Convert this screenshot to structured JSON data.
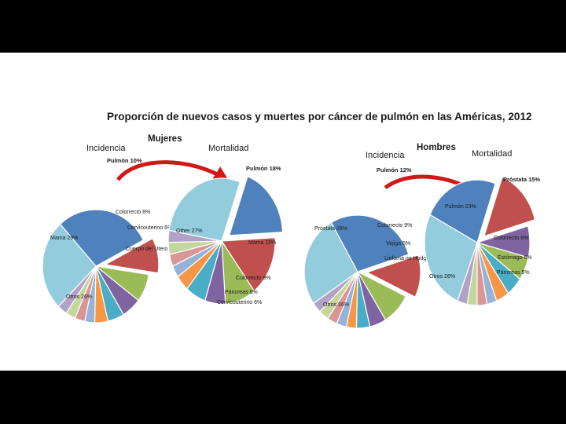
{
  "title": "Proporción de nuevos casos y muertes por cáncer de pulmón en las Américas, 2012",
  "colors": {
    "blue": "#4f81bd",
    "red": "#c0504d",
    "green": "#9bbb59",
    "purple": "#8064a2",
    "teal": "#4bacc6",
    "orange": "#f79646",
    "lightblue": "#93cddd",
    "slate": "#95b3d7",
    "pink": "#d99694",
    "lightgreen": "#c3d69b",
    "lavender": "#b3a2c7",
    "arrow": "#e02020"
  },
  "groups": [
    {
      "label": "Mujeres"
    },
    {
      "label": "Hombres"
    }
  ],
  "chart_data": [
    {
      "type": "pie",
      "subtitle": "Incidencia",
      "group": "Mujeres",
      "slices": [
        {
          "label": "Pulmón 10%",
          "value": 10,
          "color": "#c0504d",
          "exploded": true
        },
        {
          "label": "Colorrecto 8%",
          "value": 8,
          "color": "#9bbb59"
        },
        {
          "label": "Cervicouterino 6%",
          "value": 6,
          "color": "#8064a2"
        },
        {
          "label": "Cuerpo del Útero 5%",
          "value": 5,
          "color": "#4bacc6"
        },
        {
          "label": "",
          "value": 4,
          "color": "#f79646"
        },
        {
          "label": "",
          "value": 3,
          "color": "#95b3d7"
        },
        {
          "label": "",
          "value": 3,
          "color": "#d99694"
        },
        {
          "label": "",
          "value": 3,
          "color": "#c3d69b"
        },
        {
          "label": "",
          "value": 3,
          "color": "#b3a2c7"
        },
        {
          "label": "Otros 26%",
          "value": 26,
          "color": "#93cddd"
        },
        {
          "label": "Mama 29%",
          "value": 29,
          "color": "#4f81bd"
        }
      ]
    },
    {
      "type": "pie",
      "subtitle": "Mortalidad",
      "group": "Mujeres",
      "slices": [
        {
          "label": "Pulmón 18%",
          "value": 18,
          "color": "#4f81bd",
          "exploded": true
        },
        {
          "label": "Mama 15%",
          "value": 15,
          "color": "#c0504d"
        },
        {
          "label": "Colorrecto 9%",
          "value": 9,
          "color": "#9bbb59"
        },
        {
          "label": "Páncreas 6%",
          "value": 6,
          "color": "#8064a2"
        },
        {
          "label": "Cervicouterino 6%",
          "value": 6,
          "color": "#4bacc6"
        },
        {
          "label": "",
          "value": 4,
          "color": "#f79646"
        },
        {
          "label": "",
          "value": 3,
          "color": "#95b3d7"
        },
        {
          "label": "",
          "value": 3,
          "color": "#d99694"
        },
        {
          "label": "",
          "value": 3,
          "color": "#c3d69b"
        },
        {
          "label": "",
          "value": 3,
          "color": "#b3a2c7"
        },
        {
          "label": "Other 27%",
          "value": 27,
          "color": "#93cddd"
        }
      ]
    },
    {
      "type": "pie",
      "subtitle": "Incidencia",
      "group": "Hombres",
      "slices": [
        {
          "label": "Pulmón 12%",
          "value": 12,
          "color": "#c0504d",
          "exploded": true
        },
        {
          "label": "Colorrecto 9%",
          "value": 9,
          "color": "#9bbb59"
        },
        {
          "label": "Vejiga 5%",
          "value": 5,
          "color": "#8064a2"
        },
        {
          "label": "Linfoma no Hodgkin 4%",
          "value": 4,
          "color": "#4bacc6"
        },
        {
          "label": "",
          "value": 3,
          "color": "#f79646"
        },
        {
          "label": "",
          "value": 3,
          "color": "#95b3d7"
        },
        {
          "label": "",
          "value": 3,
          "color": "#d99694"
        },
        {
          "label": "",
          "value": 3,
          "color": "#c3d69b"
        },
        {
          "label": "",
          "value": 3,
          "color": "#b3a2c7"
        },
        {
          "label": "Otros 26%",
          "value": 26,
          "color": "#93cddd"
        },
        {
          "label": "Próstata 28%",
          "value": 28,
          "color": "#4f81bd"
        }
      ]
    },
    {
      "type": "pie",
      "subtitle": "Mortalidad",
      "group": "Hombres",
      "slices": [
        {
          "label": "Próstata 15%",
          "value": 15,
          "color": "#c0504d",
          "exploded": true
        },
        {
          "label": "Colorrecto 8%",
          "value": 8,
          "color": "#8064a2"
        },
        {
          "label": "Estómago 6%",
          "value": 6,
          "color": "#9bbb59"
        },
        {
          "label": "Páncreas 5%",
          "value": 5,
          "color": "#4bacc6"
        },
        {
          "label": "",
          "value": 4,
          "color": "#f79646"
        },
        {
          "label": "",
          "value": 3,
          "color": "#95b3d7"
        },
        {
          "label": "",
          "value": 3,
          "color": "#d99694"
        },
        {
          "label": "",
          "value": 3,
          "color": "#c3d69b"
        },
        {
          "label": "",
          "value": 3,
          "color": "#b3a2c7"
        },
        {
          "label": "Otros 26%",
          "value": 26,
          "color": "#93cddd"
        },
        {
          "label": "Pulmón 23%",
          "value": 23,
          "color": "#4f81bd"
        }
      ]
    }
  ]
}
